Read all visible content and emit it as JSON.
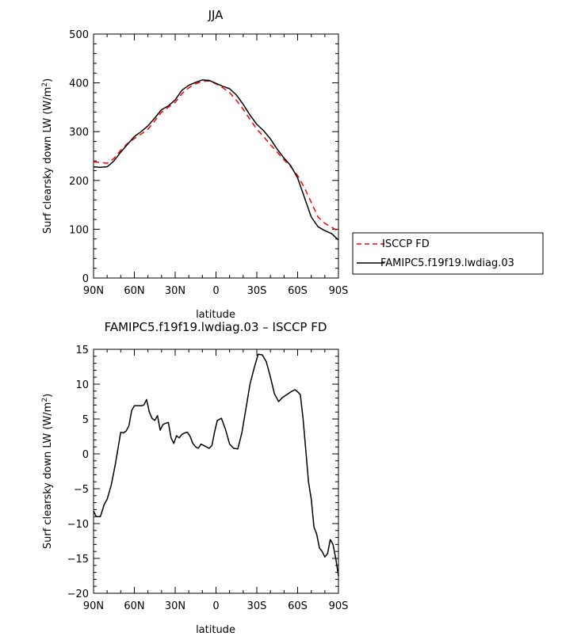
{
  "chart_data": [
    {
      "type": "line",
      "title": "JJA",
      "xlabel": "latitude",
      "ylabel": "Surf clearsky down LW (W/m²)",
      "ylabel_main": "Surf clearsky down LW (W/m",
      "ylabel_sup": "2",
      "ylabel_end": ")",
      "xlim": [
        90,
        -90
      ],
      "ylim": [
        0,
        500
      ],
      "x_ticks": [
        {
          "value": 90,
          "label": "90N"
        },
        {
          "value": 60,
          "label": "60N"
        },
        {
          "value": 30,
          "label": "30N"
        },
        {
          "value": 0,
          "label": "0"
        },
        {
          "value": -30,
          "label": "30S"
        },
        {
          "value": -60,
          "label": "60S"
        },
        {
          "value": -90,
          "label": "90S"
        }
      ],
      "y_ticks": [
        {
          "value": 0,
          "label": "0"
        },
        {
          "value": 100,
          "label": "100"
        },
        {
          "value": 200,
          "label": "200"
        },
        {
          "value": 300,
          "label": "300"
        },
        {
          "value": 400,
          "label": "400"
        },
        {
          "value": 500,
          "label": "500"
        }
      ],
      "legend_position": "right",
      "series": [
        {
          "name": "ISCCP FD",
          "color": "#ff0000",
          "dash": "dashed",
          "x": [
            90,
            85,
            80,
            75,
            70,
            65,
            60,
            55,
            50,
            45,
            40,
            35,
            30,
            25,
            20,
            15,
            10,
            5,
            0,
            -5,
            -10,
            -15,
            -20,
            -25,
            -30,
            -35,
            -40,
            -45,
            -50,
            -55,
            -60,
            -65,
            -70,
            -75,
            -80,
            -85,
            -90
          ],
          "y": [
            238,
            237,
            235,
            245,
            262,
            276,
            286,
            295,
            305,
            322,
            340,
            350,
            360,
            378,
            390,
            398,
            403,
            404,
            398,
            390,
            380,
            364,
            346,
            325,
            305,
            290,
            273,
            258,
            242,
            228,
            210,
            185,
            155,
            125,
            112,
            104,
            96
          ]
        },
        {
          "name": "FAMIPC5.f19f19.lwdiag.03",
          "color": "#000000",
          "dash": "solid",
          "x": [
            90,
            85,
            80,
            75,
            70,
            65,
            60,
            55,
            50,
            45,
            40,
            35,
            30,
            25,
            20,
            15,
            10,
            5,
            0,
            -5,
            -10,
            -15,
            -20,
            -25,
            -30,
            -35,
            -40,
            -45,
            -50,
            -55,
            -60,
            -65,
            -70,
            -75,
            -80,
            -85,
            -90
          ],
          "y": [
            228,
            227,
            228,
            240,
            258,
            274,
            290,
            300,
            312,
            328,
            345,
            353,
            365,
            385,
            395,
            401,
            406,
            405,
            399,
            393,
            388,
            375,
            356,
            334,
            315,
            302,
            285,
            264,
            246,
            230,
            205,
            165,
            125,
            105,
            97,
            91,
            78
          ]
        }
      ]
    },
    {
      "type": "line",
      "title": "FAMIPC5.f19f19.lwdiag.03 – ISCCP FD",
      "xlabel": "latitude",
      "ylabel": "Surf clearsky down LW (W/m²)",
      "ylabel_main": "Surf clearsky down LW (W/m",
      "ylabel_sup": "2",
      "ylabel_end": ")",
      "xlim": [
        90,
        -90
      ],
      "ylim": [
        -20,
        15
      ],
      "x_ticks": [
        {
          "value": 90,
          "label": "90N"
        },
        {
          "value": 60,
          "label": "60N"
        },
        {
          "value": 30,
          "label": "30N"
        },
        {
          "value": 0,
          "label": "0"
        },
        {
          "value": -30,
          "label": "30S"
        },
        {
          "value": -60,
          "label": "60S"
        },
        {
          "value": -90,
          "label": "90S"
        }
      ],
      "y_ticks": [
        {
          "value": -20,
          "label": "−20"
        },
        {
          "value": -15,
          "label": "−15"
        },
        {
          "value": -10,
          "label": "−10"
        },
        {
          "value": -5,
          "label": "−5"
        },
        {
          "value": 0,
          "label": "0"
        },
        {
          "value": 5,
          "label": "5"
        },
        {
          "value": 10,
          "label": "10"
        },
        {
          "value": 15,
          "label": "15"
        }
      ],
      "series": [
        {
          "color": "#000000",
          "dash": "solid",
          "x": [
            90,
            88,
            85,
            82,
            80,
            77,
            74,
            72,
            70,
            68,
            66,
            64,
            62,
            60,
            58,
            55,
            53,
            51,
            49,
            47,
            45,
            43,
            41,
            39,
            37,
            35,
            33,
            31,
            29,
            27,
            25,
            23,
            21,
            19,
            17,
            15,
            13,
            11,
            9,
            7,
            5,
            3,
            1,
            -1,
            -4,
            -7,
            -10,
            -13,
            -16,
            -19,
            -22,
            -25,
            -28,
            -31,
            -34,
            -37,
            -40,
            -43,
            -46,
            -49,
            -52,
            -55,
            -58,
            -60,
            -62,
            -64,
            -66,
            -68,
            -70,
            -72,
            -74,
            -76,
            -78,
            -80,
            -82,
            -84,
            -86,
            -88,
            -90
          ],
          "y": [
            -8.2,
            -9,
            -9,
            -7.2,
            -6.5,
            -4.5,
            -1.5,
            0.8,
            3.1,
            3.0,
            3.3,
            4.0,
            6.2,
            6.9,
            6.9,
            6.9,
            7.0,
            7.8,
            6.0,
            5.1,
            4.8,
            5.5,
            3.4,
            4.2,
            4.4,
            4.5,
            2.3,
            1.5,
            2.6,
            2.3,
            2.8,
            3.0,
            3.1,
            2.5,
            1.5,
            1.0,
            0.8,
            1.4,
            1.2,
            1.0,
            0.8,
            1.2,
            3.2,
            4.8,
            5.1,
            3.5,
            1.4,
            0.8,
            0.7,
            3.0,
            6.5,
            10.0,
            12.3,
            14.3,
            14.2,
            13.2,
            11.0,
            8.6,
            7.5,
            8.1,
            8.5,
            8.9,
            9.2,
            8.9,
            8.5,
            5.0,
            0.5,
            -4.0,
            -6.5,
            -10.5,
            -11.5,
            -13.5,
            -14.0,
            -14.8,
            -14.3,
            -12.3,
            -13.0,
            -15.0,
            -17.5
          ]
        }
      ]
    }
  ]
}
